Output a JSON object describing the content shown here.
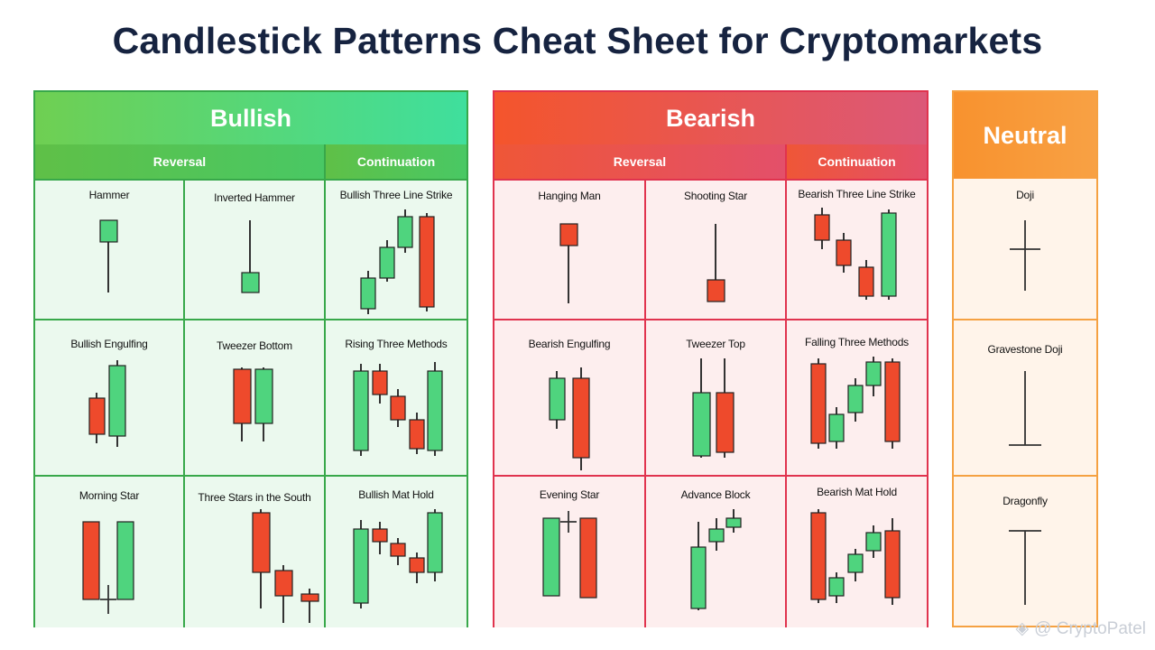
{
  "title": "Candlestick Patterns Cheat Sheet for Cryptomarkets",
  "colors": {
    "bull": "#38a84a",
    "bear": "#e0334e",
    "neutral": "#f5a142",
    "bull_candle": "#4fd47e",
    "bear_candle": "#ee4a2c"
  },
  "bullish": {
    "header": "Bullish",
    "reversal_label": "Reversal",
    "continuation_label": "Continuation",
    "patterns": [
      "Hammer",
      "Inverted Hammer",
      "Bullish Three Line Strike",
      "Bullish Engulfing",
      "Tweezer Bottom",
      "Rising Three Methods",
      "Morning Star",
      "Three Stars in the South",
      "Bullish Mat Hold"
    ]
  },
  "bearish": {
    "header": "Bearish",
    "reversal_label": "Reversal",
    "continuation_label": "Continuation",
    "patterns": [
      "Hanging Man",
      "Shooting Star",
      "Bearish Three Line Strike",
      "Bearish Engulfing",
      "Tweezer Top",
      "Falling Three Methods",
      "Evening Star",
      "Advance Block",
      "Bearish Mat Hold"
    ]
  },
  "neutral": {
    "header": "Neutral",
    "patterns": [
      "Doji",
      "Gravestone Doji",
      "Dragonfly"
    ]
  },
  "watermark": "@ CryptoPatel"
}
